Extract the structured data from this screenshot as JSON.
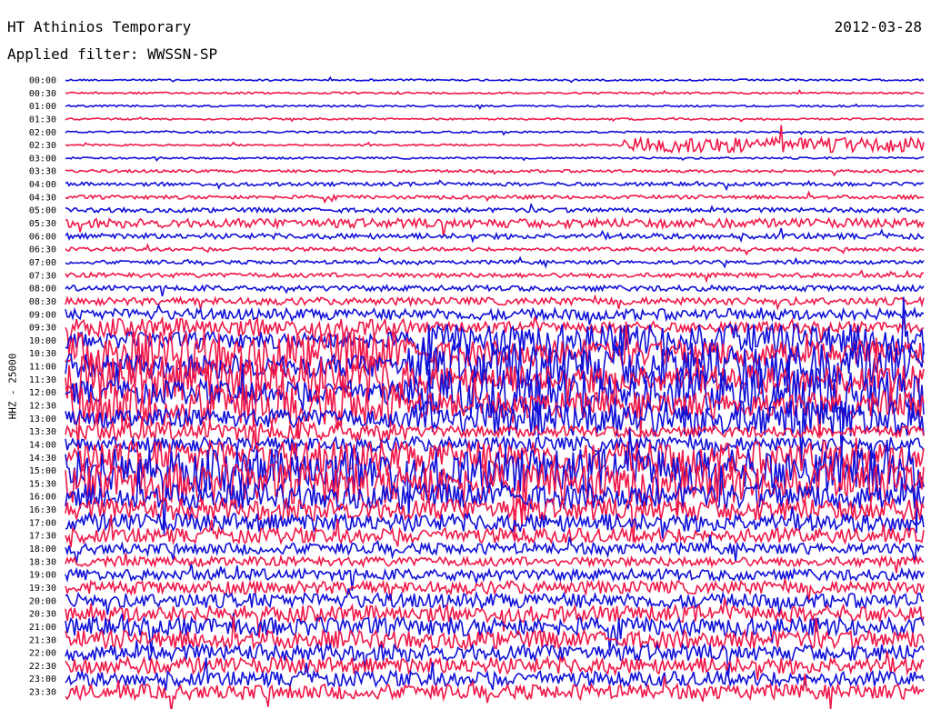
{
  "header": {
    "station": "HT Athinios Temporary",
    "date": "2012-03-28",
    "filter_label": "Applied filter: WWSSN-SP"
  },
  "chart_data": {
    "type": "line",
    "title": "HT Athinios Temporary",
    "date": "2012-03-28",
    "ylabel": "HHZ - 25000",
    "tick_labels": [
      "00:00",
      "00:30",
      "01:00",
      "01:30",
      "02:00",
      "02:30",
      "03:00",
      "03:30",
      "04:00",
      "04:30",
      "05:00",
      "05:30",
      "06:00",
      "06:30",
      "07:00",
      "07:30",
      "08:00",
      "08:30",
      "09:00",
      "09:30",
      "10:00",
      "10:30",
      "11:00",
      "11:30",
      "12:00",
      "12:30",
      "13:00",
      "13:30",
      "14:00",
      "14:30",
      "15:00",
      "15:30",
      "16:00",
      "16:30",
      "17:00",
      "17:30",
      "18:00",
      "18:30",
      "19:00",
      "19:30",
      "20:00",
      "20:30",
      "21:00",
      "21:30",
      "22:00",
      "22:30",
      "23:00",
      "23:30"
    ],
    "trace_colors": [
      "#1010d8",
      "#f01848"
    ],
    "trace_amplitude_per_interval": [
      1,
      1,
      1,
      1,
      1,
      1,
      1,
      1.5,
      2,
      2,
      2.5,
      5,
      3,
      2,
      2,
      2.5,
      3,
      4,
      6,
      10,
      18,
      24,
      26,
      26,
      26,
      24,
      20,
      10,
      8,
      18,
      24,
      22,
      14,
      12,
      10,
      8,
      6,
      5,
      6,
      7,
      8,
      9,
      10,
      10,
      9,
      9,
      8,
      8
    ],
    "grid": false,
    "legend": "none"
  }
}
